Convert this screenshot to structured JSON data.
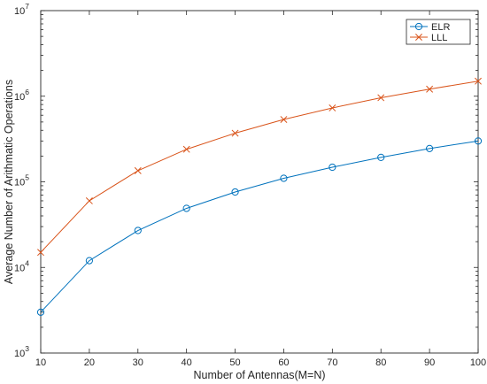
{
  "chart_data": {
    "type": "line",
    "xlabel": "Number of Antennas(M=N)",
    "ylabel": "Average Number of Arithmatic Operations",
    "x": [
      10,
      20,
      30,
      40,
      50,
      60,
      70,
      80,
      90,
      100
    ],
    "xlim": [
      10,
      100
    ],
    "xticks": [
      "10",
      "20",
      "30",
      "40",
      "50",
      "60",
      "70",
      "80",
      "90",
      "100"
    ],
    "ylim": [
      1000,
      10000000
    ],
    "yscale": "log",
    "yticks": [
      {
        "base": "10",
        "exp": "3"
      },
      {
        "base": "10",
        "exp": "4"
      },
      {
        "base": "10",
        "exp": "5"
      },
      {
        "base": "10",
        "exp": "6"
      },
      {
        "base": "10",
        "exp": "7"
      }
    ],
    "grid": false,
    "legend_position": "top-right",
    "series": [
      {
        "name": "ELR",
        "color": "#0072BD",
        "marker": "circle",
        "values": [
          3000,
          12000,
          27000,
          49000,
          76000,
          110000,
          148000,
          193000,
          245000,
          300000
        ]
      },
      {
        "name": "LLL",
        "color": "#D95319",
        "marker": "x",
        "values": [
          15000,
          60000,
          135000,
          240000,
          370000,
          535000,
          730000,
          960000,
          1210000,
          1500000
        ]
      }
    ]
  }
}
